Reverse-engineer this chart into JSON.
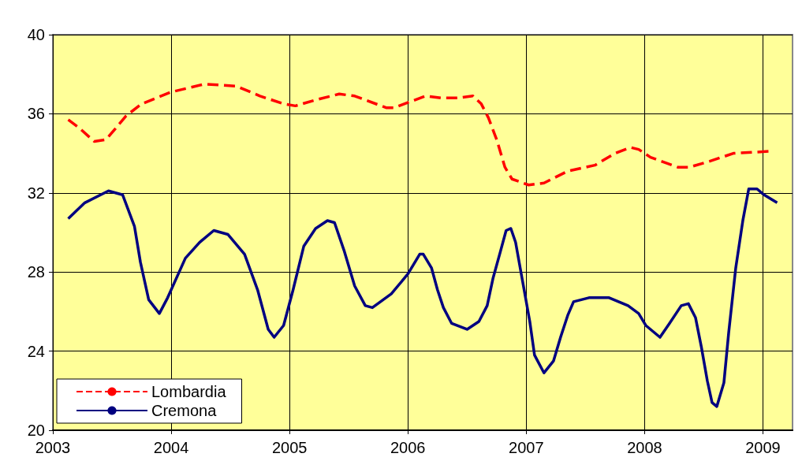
{
  "chart_data": {
    "type": "line",
    "xlim": [
      2003,
      2009.25
    ],
    "xticks": [
      2003,
      2004,
      2005,
      2006,
      2007,
      2008,
      2009
    ],
    "ylim": [
      20,
      40
    ],
    "yticks": [
      20,
      24,
      28,
      32,
      36,
      40
    ],
    "grid": true,
    "legend": "bottom left",
    "marker": "none",
    "series": [
      {
        "name": "Lombardia",
        "color": "#ff0000",
        "line_style": "dashed",
        "x": [
          2003.13,
          2003.22,
          2003.35,
          2003.45,
          2003.55,
          2003.62,
          2003.75,
          2004.0,
          2004.28,
          2004.55,
          2004.75,
          2004.95,
          2005.05,
          2005.22,
          2005.42,
          2005.55,
          2005.82,
          2005.88,
          2006.15,
          2006.28,
          2006.42,
          2006.55,
          2006.62,
          2006.68,
          2006.75,
          2006.82,
          2006.88,
          2007.02,
          2007.15,
          2007.35,
          2007.58,
          2007.75,
          2007.88,
          2007.95,
          2008.05,
          2008.28,
          2008.38,
          2008.55,
          2008.75,
          2009.05
        ],
        "values": [
          35.7,
          35.3,
          34.6,
          34.7,
          35.4,
          35.9,
          36.5,
          37.1,
          37.5,
          37.4,
          36.9,
          36.5,
          36.4,
          36.7,
          37.0,
          36.9,
          36.3,
          36.3,
          36.9,
          36.8,
          36.8,
          36.9,
          36.5,
          35.8,
          34.7,
          33.3,
          32.7,
          32.4,
          32.5,
          33.1,
          33.4,
          34.0,
          34.3,
          34.2,
          33.8,
          33.3,
          33.3,
          33.6,
          34.0,
          34.1
        ]
      },
      {
        "name": "Cremona",
        "color": "#000080",
        "line_style": "solid",
        "x": [
          2003.13,
          2003.27,
          2003.47,
          2003.59,
          2003.69,
          2003.74,
          2003.81,
          2003.9,
          2003.97,
          2004.12,
          2004.24,
          2004.36,
          2004.48,
          2004.62,
          2004.73,
          2004.82,
          2004.87,
          2004.95,
          2005.03,
          2005.12,
          2005.22,
          2005.32,
          2005.38,
          2005.46,
          2005.55,
          2005.64,
          2005.7,
          2005.86,
          2006.0,
          2006.1,
          2006.13,
          2006.2,
          2006.25,
          2006.3,
          2006.37,
          2006.5,
          2006.6,
          2006.67,
          2006.72,
          2006.78,
          2006.83,
          2006.87,
          2006.91,
          2006.97,
          2007.03,
          2007.07,
          2007.15,
          2007.23,
          2007.29,
          2007.35,
          2007.4,
          2007.53,
          2007.7,
          2007.86,
          2007.95,
          2008.01,
          2008.13,
          2008.21,
          2008.31,
          2008.37,
          2008.43,
          2008.48,
          2008.53,
          2008.57,
          2008.61,
          2008.67,
          2008.71,
          2008.77,
          2008.83,
          2008.88,
          2008.95,
          2009.01,
          2009.12
        ],
        "values": [
          30.7,
          31.5,
          32.1,
          31.9,
          30.3,
          28.5,
          26.6,
          25.9,
          26.7,
          28.7,
          29.5,
          30.1,
          29.9,
          28.9,
          27.1,
          25.1,
          24.7,
          25.3,
          27.1,
          29.3,
          30.2,
          30.6,
          30.5,
          29.1,
          27.3,
          26.3,
          26.2,
          26.9,
          27.9,
          28.9,
          28.9,
          28.2,
          27.1,
          26.2,
          25.4,
          25.1,
          25.5,
          26.3,
          27.7,
          29.0,
          30.1,
          30.2,
          29.5,
          27.5,
          25.5,
          23.8,
          22.9,
          23.5,
          24.7,
          25.8,
          26.5,
          26.7,
          26.7,
          26.3,
          25.9,
          25.3,
          24.7,
          25.4,
          26.3,
          26.4,
          25.7,
          24.2,
          22.5,
          21.4,
          21.2,
          22.4,
          24.9,
          28.2,
          30.6,
          32.2,
          32.2,
          31.9,
          31.5
        ]
      }
    ]
  }
}
